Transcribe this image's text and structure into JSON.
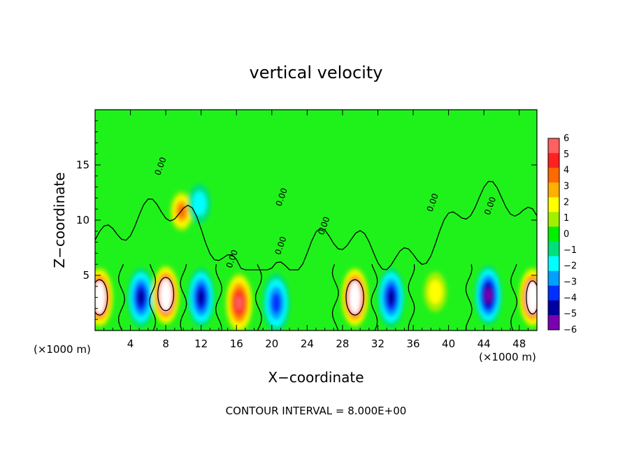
{
  "chart_data": {
    "type": "heatmap",
    "title": "vertical velocity",
    "xlabel": "X−coordinate",
    "ylabel": "Z−coordinate",
    "x_unit_left": "(×1000 m)",
    "x_unit_right": "(×1000 m)",
    "xlim": [
      0,
      50
    ],
    "ylim": [
      0,
      20
    ],
    "x_ticks": [
      4,
      8,
      12,
      16,
      20,
      24,
      28,
      32,
      36,
      40,
      44,
      48
    ],
    "y_ticks": [
      5,
      10,
      15
    ],
    "colorbar": {
      "range": [
        -6,
        6
      ],
      "ticks": [
        "6",
        "5",
        "4",
        "3",
        "2",
        "1",
        "0",
        "−1",
        "−2",
        "−3",
        "−4",
        "−5",
        "−6"
      ],
      "colors": [
        "#ff6060",
        "#ff2020",
        "#ff6a00",
        "#ffb000",
        "#ffff00",
        "#a0f000",
        "#00f000",
        "#00e07a",
        "#00ffff",
        "#00a0ff",
        "#0030ff",
        "#0000a0",
        "#7a00b0"
      ]
    },
    "contour_labels": [
      "0.00",
      "0.00",
      "0.00",
      "0.00",
      "0.00",
      "0.00",
      "0.00"
    ],
    "cells": [
      {
        "x": 0.5,
        "z": 3.0,
        "w": 8.0
      },
      {
        "x": 5.2,
        "z": 3.0,
        "w": -4.5
      },
      {
        "x": 8.0,
        "z": 3.2,
        "w": 8.0
      },
      {
        "x": 9.8,
        "z": 10.8,
        "w": 3.5
      },
      {
        "x": 11.8,
        "z": 11.5,
        "w": -2.0
      },
      {
        "x": 12.0,
        "z": 3.0,
        "w": -5.0
      },
      {
        "x": 16.3,
        "z": 2.5,
        "w": 6.0
      },
      {
        "x": 20.5,
        "z": 2.5,
        "w": -4.0
      },
      {
        "x": 29.4,
        "z": 3.0,
        "w": 8.0
      },
      {
        "x": 33.5,
        "z": 3.0,
        "w": -4.5
      },
      {
        "x": 38.5,
        "z": 3.5,
        "w": 2.0
      },
      {
        "x": 44.5,
        "z": 3.2,
        "w": -5.5
      },
      {
        "x": 49.5,
        "z": 3.0,
        "w": 8.0
      }
    ],
    "footer": "CONTOUR INTERVAL =  8.000E+00"
  }
}
